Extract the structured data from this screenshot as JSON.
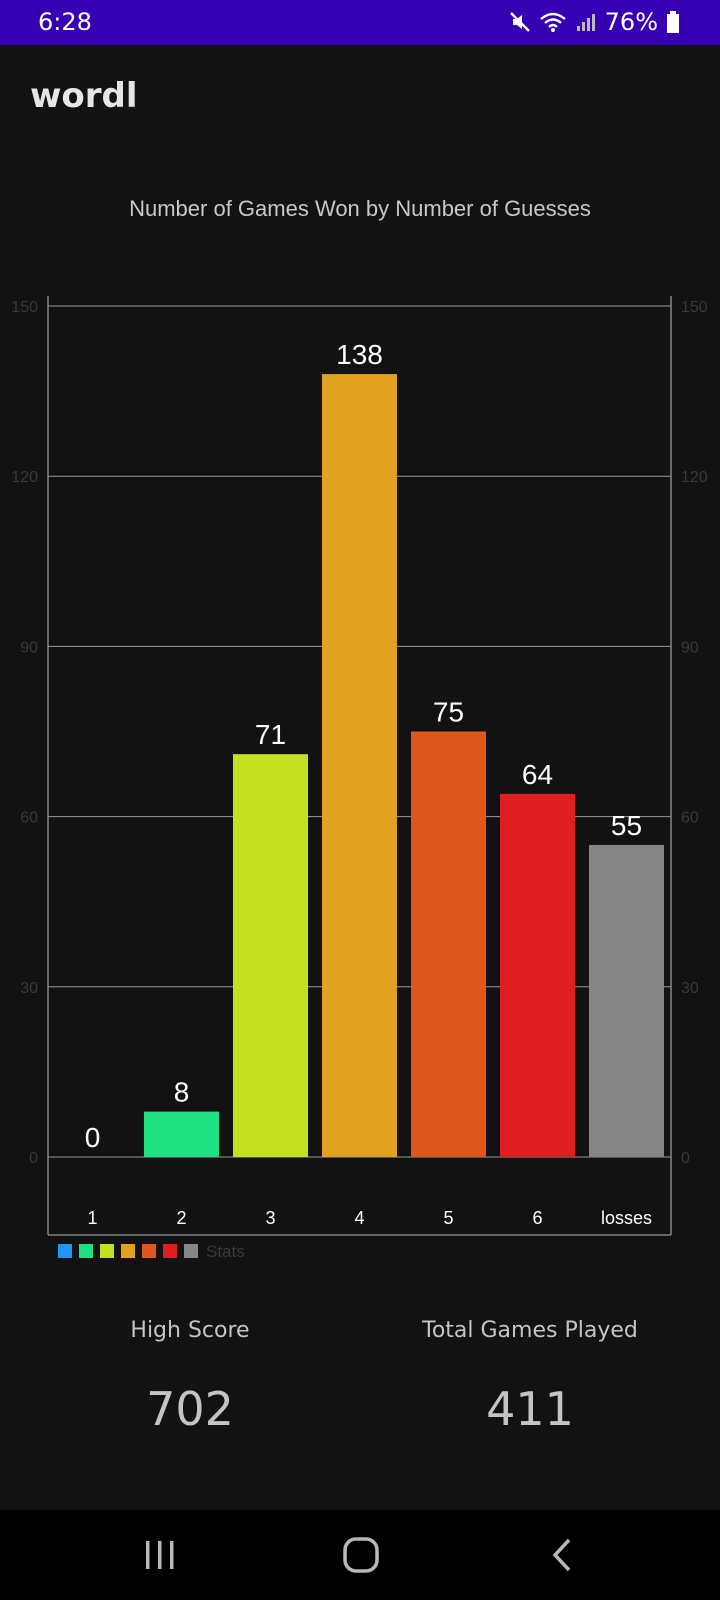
{
  "status_bar": {
    "time": "6:28",
    "battery": "76%",
    "icons": [
      "mute-icon",
      "wifi-icon",
      "signal-icon",
      "battery-icon"
    ]
  },
  "app": {
    "title": "wordl"
  },
  "chart_data": {
    "type": "bar",
    "title": "Number of Games Won by Number of Guesses",
    "categories": [
      "1",
      "2",
      "3",
      "4",
      "5",
      "6",
      "losses"
    ],
    "values": [
      0,
      8,
      71,
      138,
      75,
      64,
      55
    ],
    "colors": [
      "#2196f3",
      "#1de080",
      "#c4df1f",
      "#e0a21f",
      "#e0561f",
      "#df1f1f",
      "#868686"
    ],
    "ylim": [
      0,
      150
    ],
    "yticks": [
      0,
      30,
      60,
      90,
      120,
      150
    ],
    "grid": true,
    "legend": {
      "position": "bottom-left",
      "label": "Stats"
    }
  },
  "stats": {
    "high_score_label": "High Score",
    "high_score_value": "702",
    "total_games_label": "Total Games Played",
    "total_games_value": "411"
  },
  "nav": {
    "icons": [
      "recent-apps-icon",
      "home-icon",
      "back-icon"
    ]
  }
}
